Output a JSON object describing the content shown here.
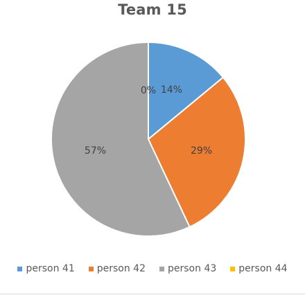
{
  "chart_data": {
    "type": "pie",
    "title": "Team 15",
    "categories": [
      "person 41",
      "person 42",
      "person 43",
      "person 44"
    ],
    "values": [
      14,
      29,
      57,
      0
    ],
    "data_labels": [
      "14%",
      "29%",
      "57%",
      "0%"
    ],
    "colors": [
      "#5B9BD5",
      "#ED7D31",
      "#A5A5A5",
      "#FFC000"
    ],
    "legend_position": "bottom"
  }
}
